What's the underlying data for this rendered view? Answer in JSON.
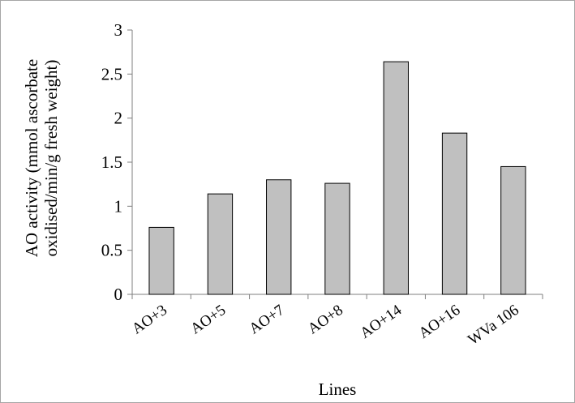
{
  "chart_data": {
    "type": "bar",
    "title": "",
    "xlabel": "Lines",
    "ylabel_line1": "AO activity (mmol ascorbate",
    "ylabel_line2": "oxidised/min/g  fresh weight)",
    "categories": [
      "AO+3",
      "AO+5",
      "AO+7",
      "AO+8",
      "AO+14",
      "AO+16",
      "WVa 106"
    ],
    "values": [
      0.76,
      1.14,
      1.3,
      1.26,
      2.64,
      1.83,
      1.45
    ],
    "ylim": [
      0,
      3
    ],
    "yticks": [
      0,
      0.5,
      1,
      1.5,
      2,
      2.5,
      3
    ],
    "ytick_labels": [
      "0",
      "0.5",
      "1",
      "1.5",
      "2",
      "2.5",
      "3"
    ],
    "bar_color": "#c0c0c0",
    "bar_edge_color": "#000000",
    "grid": false,
    "legend": "none"
  }
}
